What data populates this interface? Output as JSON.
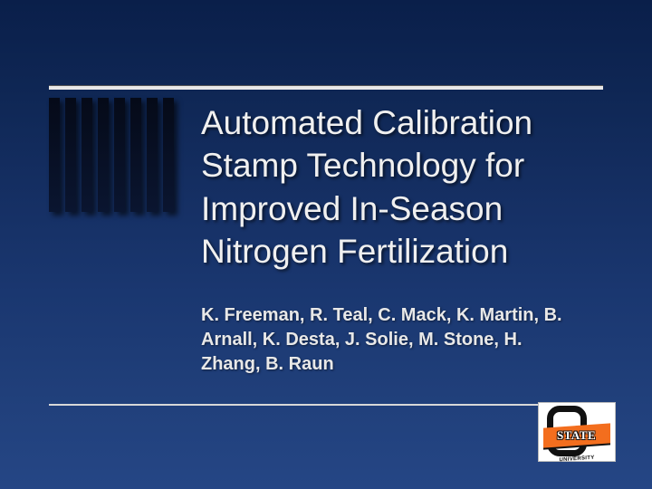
{
  "slide": {
    "background_gradient": [
      "#0a1f4a",
      "#254685"
    ],
    "rule_color": "#e8e8e8",
    "title": "Automated Calibration Stamp Technology for Improved In-Season Nitrogen Fertilization",
    "title_fontsize": 37,
    "title_color": "#f0f0f0",
    "authors": "K. Freeman, R. Teal, C. Mack, K. Martin, B. Arnall, K. Desta, J. Solie, M. Stone, H. Zhang, B. Raun",
    "authors_fontsize": 20,
    "authors_color": "#e8e8e8",
    "bars_count": 8,
    "bar_color": "#050a18",
    "logo": {
      "banner_text": "STATE",
      "sub_text": "UNIVERSITY",
      "banner_bg": "#f36e1e",
      "outline_color": "#111111",
      "bg": "#ffffff"
    }
  }
}
